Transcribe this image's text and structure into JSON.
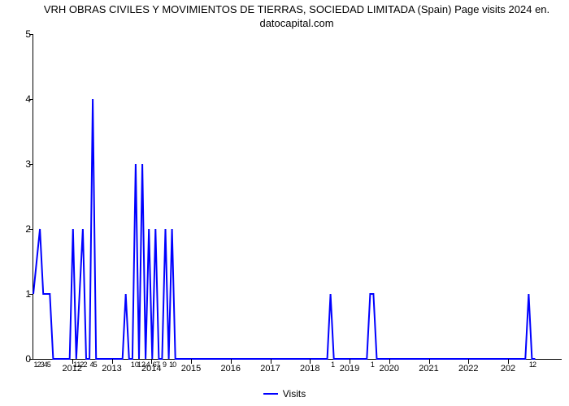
{
  "chart": {
    "type": "line",
    "title_line1": "VRH OBRAS CIVILES Y MOVIMIENTOS DE TIERRAS, SOCIEDAD LIMITADA (Spain) Page visits 2024 en.",
    "title_line2": "datocapital.com",
    "title_fontsize": 13,
    "line_color": "#0000ff",
    "line_width": 2,
    "background_color": "#ffffff",
    "axis_color": "#000000",
    "ylabel": "",
    "xlabel": "",
    "ylim": [
      0,
      5
    ],
    "yticks": [
      0,
      1,
      2,
      3,
      4,
      5
    ],
    "x_domain": [
      0,
      160
    ],
    "year_ticks": [
      {
        "pos": 12,
        "label": "2012"
      },
      {
        "pos": 24,
        "label": "2013"
      },
      {
        "pos": 36,
        "label": "2014"
      },
      {
        "pos": 48,
        "label": "2015"
      },
      {
        "pos": 60,
        "label": "2016"
      },
      {
        "pos": 72,
        "label": "2017"
      },
      {
        "pos": 84,
        "label": "2018"
      },
      {
        "pos": 96,
        "label": "2019"
      },
      {
        "pos": 108,
        "label": "2020"
      },
      {
        "pos": 120,
        "label": "2021"
      },
      {
        "pos": 132,
        "label": "2022"
      },
      {
        "pos": 144,
        "label": "202"
      }
    ],
    "minor_ticks": [
      {
        "pos": 1,
        "label": "1"
      },
      {
        "pos": 2,
        "label": "2"
      },
      {
        "pos": 3,
        "label": "3"
      },
      {
        "pos": 4,
        "label": "4"
      },
      {
        "pos": 5,
        "label": "5"
      },
      {
        "pos": 13,
        "label": "1"
      },
      {
        "pos": 14,
        "label": "1"
      },
      {
        "pos": 15,
        "label": "2"
      },
      {
        "pos": 16,
        "label": "2"
      },
      {
        "pos": 18,
        "label": "4"
      },
      {
        "pos": 19,
        "label": "5"
      },
      {
        "pos": 31,
        "label": "10"
      },
      {
        "pos": 33,
        "label": "12"
      },
      {
        "pos": 35,
        "label": "4"
      },
      {
        "pos": 37,
        "label": "6"
      },
      {
        "pos": 38,
        "label": "7"
      },
      {
        "pos": 40,
        "label": "9"
      },
      {
        "pos": 42,
        "label": "1"
      },
      {
        "pos": 43,
        "label": "0"
      },
      {
        "pos": 91,
        "label": "1"
      },
      {
        "pos": 103,
        "label": "1"
      },
      {
        "pos": 151,
        "label": "1"
      },
      {
        "pos": 152,
        "label": "2"
      }
    ],
    "series": {
      "name": "Visits",
      "points": [
        [
          0,
          1
        ],
        [
          2,
          2
        ],
        [
          3,
          1
        ],
        [
          5,
          1
        ],
        [
          6,
          0
        ],
        [
          11,
          0
        ],
        [
          12,
          2
        ],
        [
          13,
          0
        ],
        [
          15,
          2
        ],
        [
          16,
          0
        ],
        [
          17,
          0
        ],
        [
          18,
          4
        ],
        [
          19,
          0
        ],
        [
          27,
          0
        ],
        [
          28,
          1
        ],
        [
          29,
          0
        ],
        [
          30,
          0
        ],
        [
          31,
          3
        ],
        [
          32,
          0
        ],
        [
          33,
          3
        ],
        [
          34,
          0
        ],
        [
          35,
          2
        ],
        [
          36,
          0
        ],
        [
          37,
          2
        ],
        [
          38,
          0
        ],
        [
          39,
          0
        ],
        [
          40,
          2
        ],
        [
          41,
          0
        ],
        [
          42,
          2
        ],
        [
          43,
          0
        ],
        [
          44,
          0
        ],
        [
          89,
          0
        ],
        [
          90,
          1
        ],
        [
          91,
          0
        ],
        [
          101,
          0
        ],
        [
          102,
          1
        ],
        [
          103,
          1
        ],
        [
          104,
          0
        ],
        [
          149,
          0
        ],
        [
          150,
          1
        ],
        [
          151,
          0
        ],
        [
          152,
          0
        ]
      ]
    },
    "legend_label": "Visits",
    "legend_swatch_color": "#0000ff"
  }
}
